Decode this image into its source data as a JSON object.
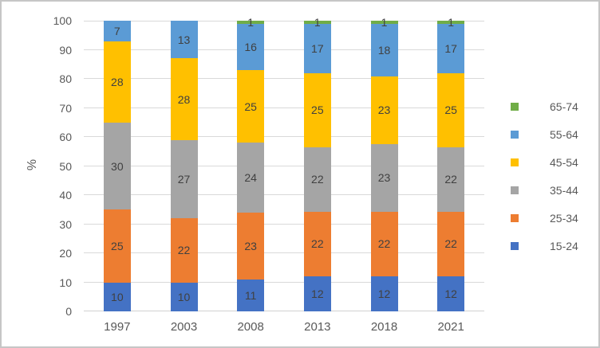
{
  "frame": {
    "background": "#ffffff",
    "border_color": "#c6c6c6"
  },
  "chart_data": {
    "type": "bar",
    "stacked": true,
    "percent_stacked": true,
    "title": "",
    "xlabel": "",
    "ylabel": "%",
    "ylim": [
      0,
      100
    ],
    "yticks": [
      0,
      10,
      20,
      30,
      40,
      50,
      60,
      70,
      80,
      90,
      100
    ],
    "grid": true,
    "legend_position": "right",
    "legend_order": "reversed",
    "categories": [
      "1997",
      "2003",
      "2008",
      "2013",
      "2018",
      "2021"
    ],
    "series": [
      {
        "name": "15-24",
        "color": "#4472C4",
        "values": [
          10,
          10,
          11,
          12,
          12,
          12
        ]
      },
      {
        "name": "25-34",
        "color": "#ED7D31",
        "values": [
          25,
          22,
          23,
          22,
          22,
          22
        ]
      },
      {
        "name": "35-44",
        "color": "#A5A5A5",
        "values": [
          30,
          27,
          24,
          22,
          23,
          22
        ]
      },
      {
        "name": "45-54",
        "color": "#FFC000",
        "values": [
          28,
          28,
          25,
          25,
          23,
          25
        ]
      },
      {
        "name": "55-64",
        "color": "#5B9BD5",
        "values": [
          7,
          13,
          16,
          17,
          18,
          17
        ]
      },
      {
        "name": "65-74",
        "color": "#70AD47",
        "values": [
          0,
          0,
          1,
          1,
          1,
          1
        ]
      }
    ],
    "colors": {
      "gridline": "#d9d9d9",
      "axis_line": "#d0d0d0",
      "axis_text": "#595959",
      "data_label": "#404040"
    }
  }
}
